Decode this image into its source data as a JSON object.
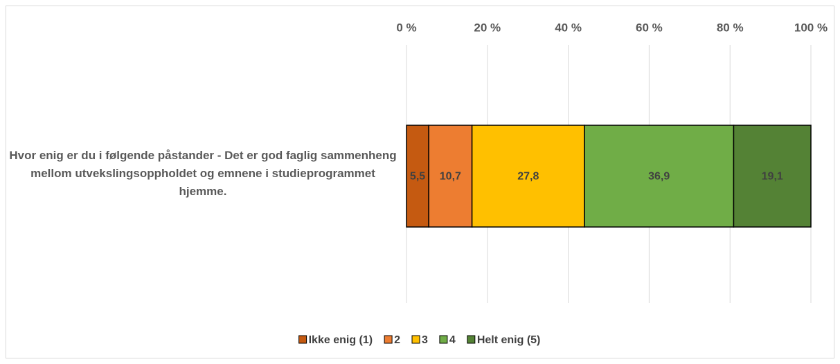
{
  "chart_data": {
    "type": "stacked_bar_horizontal",
    "categories": [
      "Hvor enig er du i følgende påstander - Det er god faglig sammenheng mellom utvekslingsoppholdet og emnene i studieprogrammet hjemme."
    ],
    "series": [
      {
        "name": "Ikke enig (1)",
        "color": "#C55A11",
        "values": [
          5.5
        ],
        "value_labels": [
          "5,5"
        ]
      },
      {
        "name": "2",
        "color": "#ED7D31",
        "values": [
          10.7
        ],
        "value_labels": [
          "10,7"
        ]
      },
      {
        "name": "3",
        "color": "#FFC000",
        "values": [
          27.8
        ],
        "value_labels": [
          "27,8"
        ]
      },
      {
        "name": "4",
        "color": "#70AD47",
        "values": [
          36.9
        ],
        "value_labels": [
          "36,9"
        ]
      },
      {
        "name": "Helt enig (5)",
        "color": "#548235",
        "values": [
          19.1
        ],
        "value_labels": [
          "19,1"
        ]
      }
    ],
    "xlim": [
      0,
      100
    ],
    "xticks": [
      {
        "value": 0,
        "label": "0 %"
      },
      {
        "value": 20,
        "label": "20 %"
      },
      {
        "value": 40,
        "label": "40 %"
      },
      {
        "value": 60,
        "label": "60 %"
      },
      {
        "value": 80,
        "label": "80 %"
      },
      {
        "value": 100,
        "label": "100 %"
      }
    ],
    "grid": true,
    "legend": "bottom"
  }
}
